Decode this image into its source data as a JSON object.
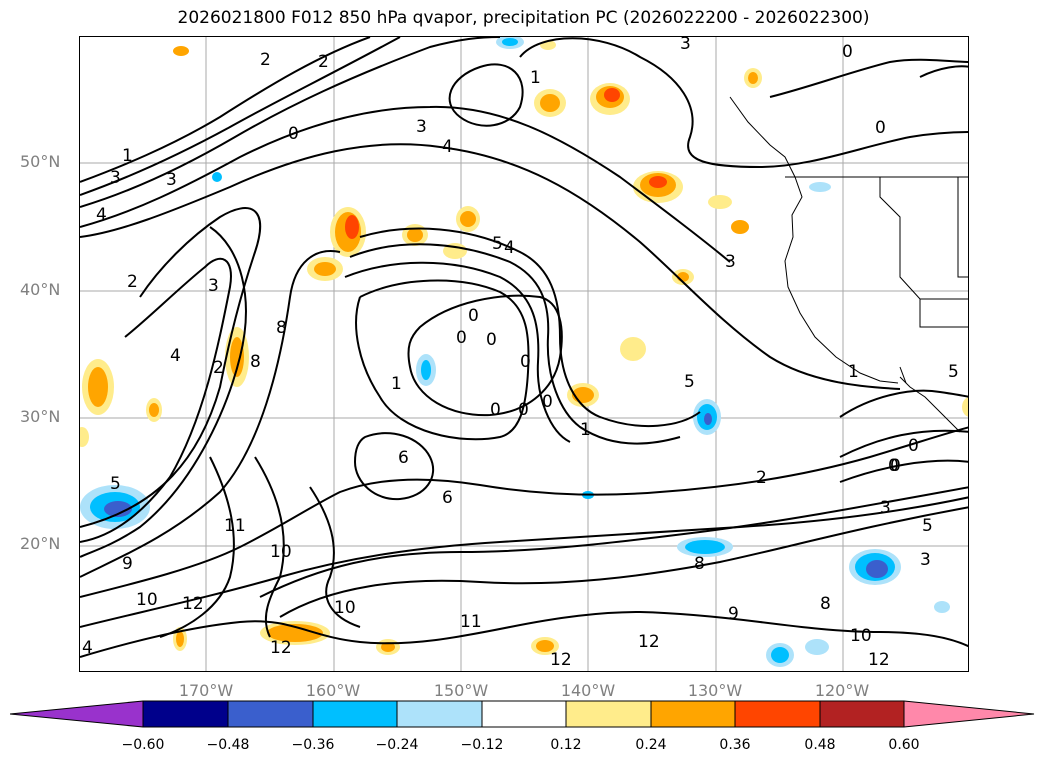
{
  "title": "2026021800 F012 850 hPa qvapor, precipitation PC (2026022200 - 2026022300)",
  "lat_labels": [
    "50°N",
    "40°N",
    "30°N",
    "20°N"
  ],
  "lon_labels": [
    "170°W",
    "160°W",
    "150°W",
    "140°W",
    "130°W",
    "120°W"
  ],
  "contour_labels": [
    "2",
    "2",
    "1",
    "3",
    "3",
    "4",
    "3",
    "4",
    "0",
    "0",
    "0",
    "5",
    "4",
    "3",
    "2",
    "1",
    "8",
    "4",
    "2",
    "8",
    "1",
    "0",
    "0",
    "0",
    "0",
    "0",
    "0",
    "0",
    "0",
    "1",
    "5",
    "6",
    "6",
    "5",
    "11",
    "10",
    "9",
    "10",
    "12",
    "10",
    "11",
    "12",
    "8",
    "9",
    "8",
    "12",
    "12",
    "10",
    "12",
    "3",
    "5",
    "0",
    "0",
    "4",
    "3",
    "2",
    "1",
    "5",
    "3",
    "3"
  ],
  "colorbar": {
    "ticks": [
      "−0.60",
      "−0.48",
      "−0.36",
      "−0.24",
      "−0.12",
      "0.12",
      "0.24",
      "0.36",
      "0.48",
      "0.60"
    ],
    "colors": [
      "#9932CC",
      "#00008B",
      "#3A5FCD",
      "#00BFFF",
      "#ADE2FA",
      "#FFFFFF",
      "#FFEC8B",
      "#FFA500",
      "#FF4500",
      "#B22222",
      "#FF88AA"
    ]
  }
}
